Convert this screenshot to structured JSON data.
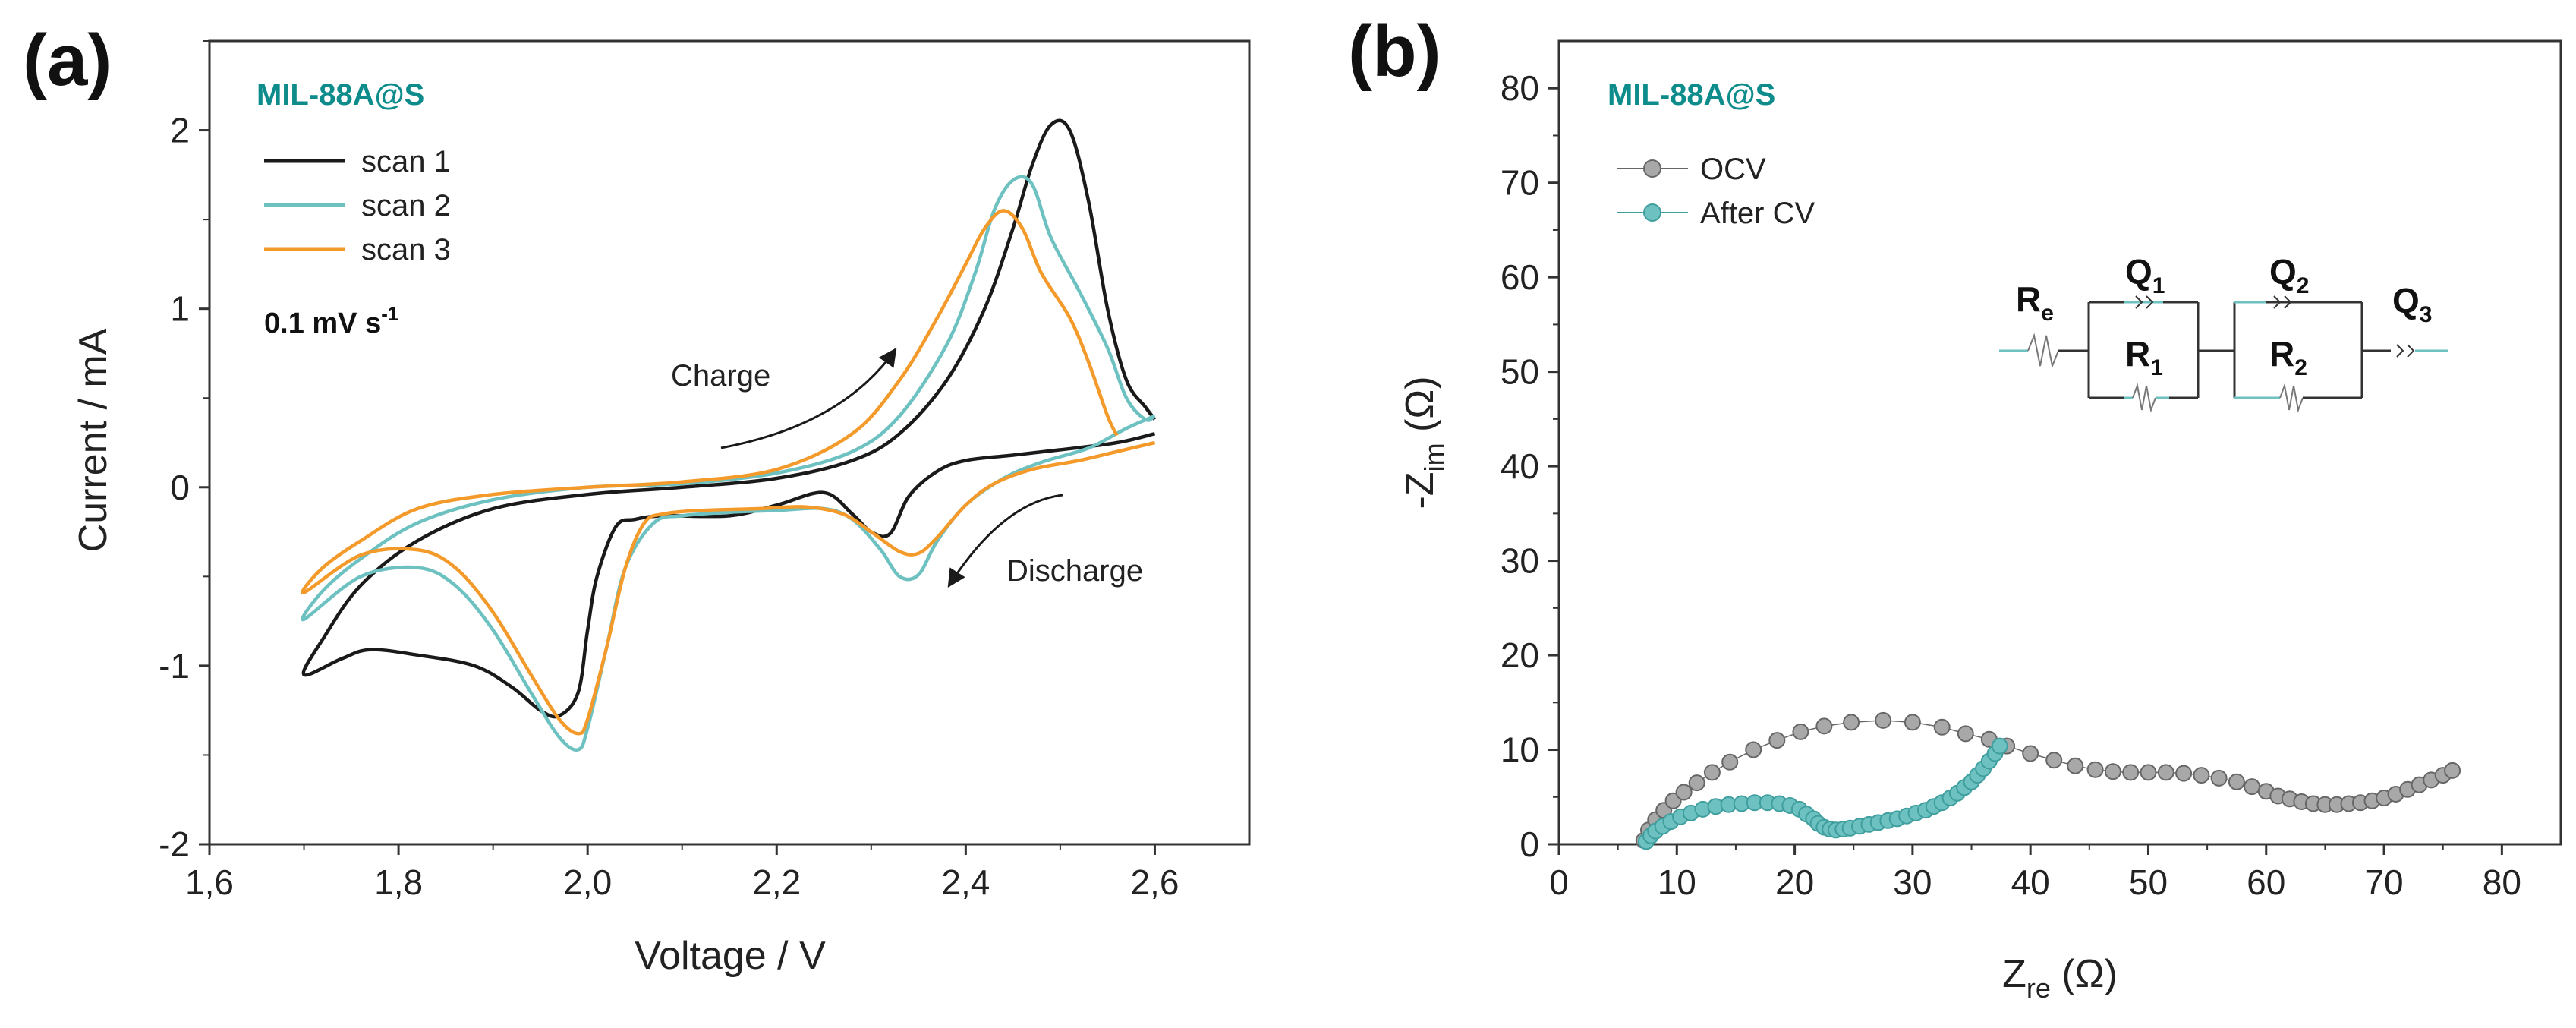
{
  "colors": {
    "scan1": "#1a1a1a",
    "scan2": "#6ec1c1",
    "scan3": "#f39a2b",
    "sample": "#0e8c8c",
    "ocv_marker": "#a8a8a8",
    "aftercv_marker": "#6ec1c1",
    "axis": "#333333"
  },
  "panel_a": {
    "label": "(a)",
    "sample": "MIL-88A@S",
    "rate": "0.1 mV s",
    "rate_exp": "-1",
    "charge_label": "Charge",
    "discharge_label": "Discharge"
  },
  "panel_b": {
    "label": "(b)",
    "sample": "MIL-88A@S",
    "circuit": {
      "Re": {
        "main": "R",
        "sub": "e"
      },
      "Q1": {
        "main": "Q",
        "sub": "1"
      },
      "R1": {
        "main": "R",
        "sub": "1"
      },
      "Q2": {
        "main": "Q",
        "sub": "2"
      },
      "R2": {
        "main": "R",
        "sub": "2"
      },
      "Q3": {
        "main": "Q",
        "sub": "3"
      }
    }
  },
  "chart_data": [
    {
      "type": "line",
      "title": "",
      "xlabel": "Voltage / V",
      "ylabel": "Current / mA",
      "xlim": [
        1.6,
        2.7
      ],
      "ylim": [
        -2,
        2.5
      ],
      "xticks": [
        "1,6",
        "1,8",
        "2,0",
        "2,2",
        "2,4",
        "2,6"
      ],
      "yticks": [
        "-2",
        "-1",
        "0",
        "1",
        "2"
      ],
      "legend_position": "top-left",
      "series": [
        {
          "name": "scan 1",
          "points": [
            [
              2.6,
              0.3
            ],
            [
              2.56,
              0.25
            ],
            [
              2.5,
              0.21
            ],
            [
              2.45,
              0.18
            ],
            [
              2.4,
              0.15
            ],
            [
              2.37,
              0.09
            ],
            [
              2.34,
              -0.05
            ],
            [
              2.32,
              -0.26
            ],
            [
              2.3,
              -0.25
            ],
            [
              2.28,
              -0.15
            ],
            [
              2.25,
              -0.03
            ],
            [
              2.2,
              -0.1
            ],
            [
              2.15,
              -0.16
            ],
            [
              2.08,
              -0.16
            ],
            [
              2.05,
              -0.18
            ],
            [
              2.03,
              -0.22
            ],
            [
              2.01,
              -0.5
            ],
            [
              2.0,
              -0.8
            ],
            [
              1.99,
              -1.15
            ],
            [
              1.97,
              -1.28
            ],
            [
              1.95,
              -1.25
            ],
            [
              1.92,
              -1.12
            ],
            [
              1.88,
              -1.0
            ],
            [
              1.82,
              -0.94
            ],
            [
              1.77,
              -0.91
            ],
            [
              1.74,
              -0.96
            ],
            [
              1.7,
              -1.05
            ],
            [
              1.72,
              -0.85
            ],
            [
              1.76,
              -0.55
            ],
            [
              1.82,
              -0.3
            ],
            [
              1.9,
              -0.12
            ],
            [
              2.0,
              -0.04
            ],
            [
              2.1,
              0.0
            ],
            [
              2.2,
              0.05
            ],
            [
              2.28,
              0.15
            ],
            [
              2.33,
              0.3
            ],
            [
              2.38,
              0.6
            ],
            [
              2.42,
              1.0
            ],
            [
              2.45,
              1.45
            ],
            [
              2.47,
              1.8
            ],
            [
              2.49,
              2.03
            ],
            [
              2.51,
              2.0
            ],
            [
              2.53,
              1.6
            ],
            [
              2.55,
              1.0
            ],
            [
              2.57,
              0.6
            ],
            [
              2.59,
              0.45
            ],
            [
              2.6,
              0.38
            ]
          ]
        },
        {
          "name": "scan 2",
          "points": [
            [
              2.6,
              0.4
            ],
            [
              2.57,
              0.33
            ],
            [
              2.53,
              0.22
            ],
            [
              2.48,
              0.14
            ],
            [
              2.44,
              0.05
            ],
            [
              2.4,
              -0.1
            ],
            [
              2.37,
              -0.3
            ],
            [
              2.35,
              -0.49
            ],
            [
              2.33,
              -0.5
            ],
            [
              2.31,
              -0.35
            ],
            [
              2.28,
              -0.18
            ],
            [
              2.25,
              -0.12
            ],
            [
              2.2,
              -0.13
            ],
            [
              2.15,
              -0.14
            ],
            [
              2.1,
              -0.16
            ],
            [
              2.07,
              -0.2
            ],
            [
              2.04,
              -0.45
            ],
            [
              2.02,
              -0.9
            ],
            [
              2.0,
              -1.35
            ],
            [
              1.99,
              -1.47
            ],
            [
              1.97,
              -1.4
            ],
            [
              1.94,
              -1.15
            ],
            [
              1.9,
              -0.8
            ],
            [
              1.86,
              -0.55
            ],
            [
              1.82,
              -0.45
            ],
            [
              1.76,
              -0.5
            ],
            [
              1.7,
              -0.74
            ],
            [
              1.72,
              -0.58
            ],
            [
              1.76,
              -0.4
            ],
            [
              1.82,
              -0.2
            ],
            [
              1.9,
              -0.07
            ],
            [
              2.0,
              0.0
            ],
            [
              2.1,
              0.02
            ],
            [
              2.2,
              0.08
            ],
            [
              2.28,
              0.2
            ],
            [
              2.33,
              0.4
            ],
            [
              2.38,
              0.8
            ],
            [
              2.41,
              1.2
            ],
            [
              2.43,
              1.55
            ],
            [
              2.45,
              1.72
            ],
            [
              2.47,
              1.7
            ],
            [
              2.49,
              1.4
            ],
            [
              2.52,
              1.1
            ],
            [
              2.55,
              0.78
            ],
            [
              2.57,
              0.5
            ],
            [
              2.59,
              0.38
            ],
            [
              2.6,
              0.4
            ]
          ]
        },
        {
          "name": "scan 3",
          "points": [
            [
              2.6,
              0.25
            ],
            [
              2.56,
              0.2
            ],
            [
              2.52,
              0.15
            ],
            [
              2.47,
              0.1
            ],
            [
              2.43,
              0.02
            ],
            [
              2.4,
              -0.1
            ],
            [
              2.37,
              -0.28
            ],
            [
              2.35,
              -0.37
            ],
            [
              2.33,
              -0.36
            ],
            [
              2.3,
              -0.25
            ],
            [
              2.27,
              -0.15
            ],
            [
              2.23,
              -0.11
            ],
            [
              2.18,
              -0.12
            ],
            [
              2.12,
              -0.13
            ],
            [
              2.08,
              -0.15
            ],
            [
              2.06,
              -0.2
            ],
            [
              2.04,
              -0.45
            ],
            [
              2.02,
              -0.9
            ],
            [
              2.0,
              -1.3
            ],
            [
              1.99,
              -1.38
            ],
            [
              1.97,
              -1.3
            ],
            [
              1.94,
              -1.05
            ],
            [
              1.9,
              -0.7
            ],
            [
              1.86,
              -0.45
            ],
            [
              1.82,
              -0.35
            ],
            [
              1.76,
              -0.38
            ],
            [
              1.7,
              -0.59
            ],
            [
              1.72,
              -0.45
            ],
            [
              1.76,
              -0.3
            ],
            [
              1.82,
              -0.12
            ],
            [
              1.9,
              -0.04
            ],
            [
              2.0,
              0.0
            ],
            [
              2.1,
              0.03
            ],
            [
              2.2,
              0.1
            ],
            [
              2.28,
              0.3
            ],
            [
              2.33,
              0.6
            ],
            [
              2.37,
              0.95
            ],
            [
              2.4,
              1.25
            ],
            [
              2.42,
              1.45
            ],
            [
              2.44,
              1.55
            ],
            [
              2.46,
              1.45
            ],
            [
              2.48,
              1.2
            ],
            [
              2.51,
              0.95
            ],
            [
              2.53,
              0.7
            ],
            [
              2.55,
              0.4
            ],
            [
              2.56,
              0.29
            ]
          ]
        }
      ],
      "annotations": [
        "Charge",
        "Discharge",
        "0.1 mV s-1",
        "MIL-88A@S"
      ]
    },
    {
      "type": "scatter",
      "title": "",
      "xlabel": "Z_re (Ω)",
      "ylabel": "-Z_im (Ω)",
      "xlabel_main": "Z",
      "xlabel_sub": "re",
      "xlabel_unit": " (Ω)",
      "ylabel_main": "-Z",
      "ylabel_sub": "im",
      "ylabel_unit": " (Ω)",
      "xlim": [
        0,
        85
      ],
      "ylim": [
        0,
        85
      ],
      "xticks": [
        "0",
        "10",
        "20",
        "30",
        "40",
        "50",
        "60",
        "70",
        "80"
      ],
      "yticks": [
        "0",
        "10",
        "20",
        "30",
        "40",
        "50",
        "60",
        "70",
        "80"
      ],
      "legend_position": "top-left",
      "series": [
        {
          "name": "OCV",
          "points": [
            [
              7.2,
              0.4
            ],
            [
              7.6,
              1.5
            ],
            [
              8.2,
              2.6
            ],
            [
              8.9,
              3.6
            ],
            [
              9.7,
              4.6
            ],
            [
              10.6,
              5.5
            ],
            [
              11.7,
              6.5
            ],
            [
              13.0,
              7.6
            ],
            [
              14.5,
              8.7
            ],
            [
              16.5,
              10.0
            ],
            [
              18.5,
              11.0
            ],
            [
              20.5,
              11.9
            ],
            [
              22.5,
              12.5
            ],
            [
              24.8,
              12.9
            ],
            [
              27.5,
              13.1
            ],
            [
              30.0,
              12.9
            ],
            [
              32.5,
              12.4
            ],
            [
              34.5,
              11.7
            ],
            [
              36.5,
              11.1
            ],
            [
              38.0,
              10.4
            ],
            [
              40.0,
              9.6
            ],
            [
              42.0,
              8.9
            ],
            [
              43.8,
              8.3
            ],
            [
              45.5,
              7.9
            ],
            [
              47.0,
              7.7
            ],
            [
              48.5,
              7.6
            ],
            [
              50.0,
              7.6
            ],
            [
              51.5,
              7.6
            ],
            [
              53.0,
              7.5
            ],
            [
              54.5,
              7.3
            ],
            [
              56.0,
              7.0
            ],
            [
              57.5,
              6.6
            ],
            [
              58.8,
              6.1
            ],
            [
              60.0,
              5.6
            ],
            [
              61.0,
              5.1
            ],
            [
              62.0,
              4.8
            ],
            [
              63.0,
              4.5
            ],
            [
              64.0,
              4.3
            ],
            [
              65.0,
              4.2
            ],
            [
              66.0,
              4.2
            ],
            [
              67.0,
              4.3
            ],
            [
              68.0,
              4.4
            ],
            [
              69.0,
              4.6
            ],
            [
              70.0,
              4.9
            ],
            [
              71.0,
              5.3
            ],
            [
              72.0,
              5.8
            ],
            [
              73.0,
              6.3
            ],
            [
              74.0,
              6.8
            ],
            [
              75.0,
              7.3
            ],
            [
              75.8,
              7.8
            ]
          ]
        },
        {
          "name": "After CV",
          "points": [
            [
              7.4,
              0.3
            ],
            [
              7.8,
              0.9
            ],
            [
              8.2,
              1.4
            ],
            [
              8.8,
              1.9
            ],
            [
              9.5,
              2.4
            ],
            [
              10.3,
              2.9
            ],
            [
              11.2,
              3.3
            ],
            [
              12.2,
              3.7
            ],
            [
              13.3,
              4.0
            ],
            [
              14.4,
              4.2
            ],
            [
              15.5,
              4.3
            ],
            [
              16.6,
              4.4
            ],
            [
              17.7,
              4.4
            ],
            [
              18.7,
              4.3
            ],
            [
              19.6,
              4.1
            ],
            [
              20.4,
              3.7
            ],
            [
              21.0,
              3.2
            ],
            [
              21.6,
              2.7
            ],
            [
              22.0,
              2.2
            ],
            [
              22.5,
              1.8
            ],
            [
              23.0,
              1.6
            ],
            [
              23.5,
              1.5
            ],
            [
              24.1,
              1.6
            ],
            [
              24.7,
              1.7
            ],
            [
              25.5,
              1.9
            ],
            [
              26.3,
              2.1
            ],
            [
              27.1,
              2.3
            ],
            [
              27.9,
              2.5
            ],
            [
              28.7,
              2.7
            ],
            [
              29.5,
              3.0
            ],
            [
              30.3,
              3.3
            ],
            [
              31.1,
              3.6
            ],
            [
              31.8,
              4.0
            ],
            [
              32.5,
              4.4
            ],
            [
              33.2,
              4.9
            ],
            [
              33.8,
              5.4
            ],
            [
              34.4,
              6.0
            ],
            [
              35.0,
              6.6
            ],
            [
              35.5,
              7.3
            ],
            [
              36.0,
              8.0
            ],
            [
              36.5,
              8.8
            ],
            [
              37.0,
              9.6
            ],
            [
              37.4,
              10.4
            ]
          ]
        }
      ],
      "annotations": [
        "MIL-88A@S",
        "Re",
        "Q1",
        "R1",
        "Q2",
        "R2",
        "Q3"
      ]
    }
  ]
}
